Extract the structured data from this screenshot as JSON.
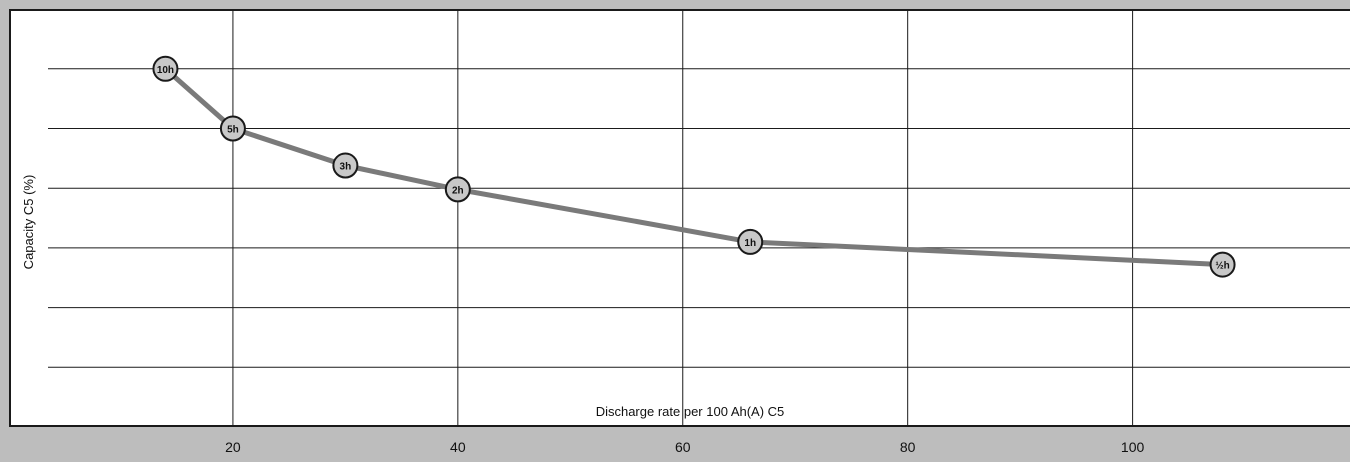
{
  "chart_data": {
    "type": "line",
    "title": "",
    "xlabel": "Discharge rate per 100 Ah(A) C5",
    "ylabel": "Capacity C5 (%)",
    "xlim": [
      0,
      120
    ],
    "x_ticks": [
      20,
      40,
      60,
      80,
      100
    ],
    "x_tick_labels": [
      "20",
      "40",
      "60",
      "80",
      "100"
    ],
    "ylim": [
      0,
      6
    ],
    "y_grid": [
      1,
      2,
      3,
      4,
      5,
      6
    ],
    "grid": true,
    "series": [
      {
        "color": "#7a7a7a",
        "points": [
          {
            "x": 14,
            "y": 6.0,
            "label": "10h"
          },
          {
            "x": 20,
            "y": 5.0,
            "label": "5h"
          },
          {
            "x": 30,
            "y": 4.38,
            "label": "3h"
          },
          {
            "x": 40,
            "y": 3.98,
            "label": "2h"
          },
          {
            "x": 66,
            "y": 3.1,
            "label": "1h"
          },
          {
            "x": 108,
            "y": 2.72,
            "label": "½h"
          }
        ]
      }
    ],
    "colors": {
      "background": "#bdbdbd",
      "plot_background": "#ffffff",
      "grid": "#1a1a1a",
      "marker_fill": "#c8c8c8",
      "marker_stroke": "#1a1a1a",
      "line": "#7a7a7a"
    }
  }
}
